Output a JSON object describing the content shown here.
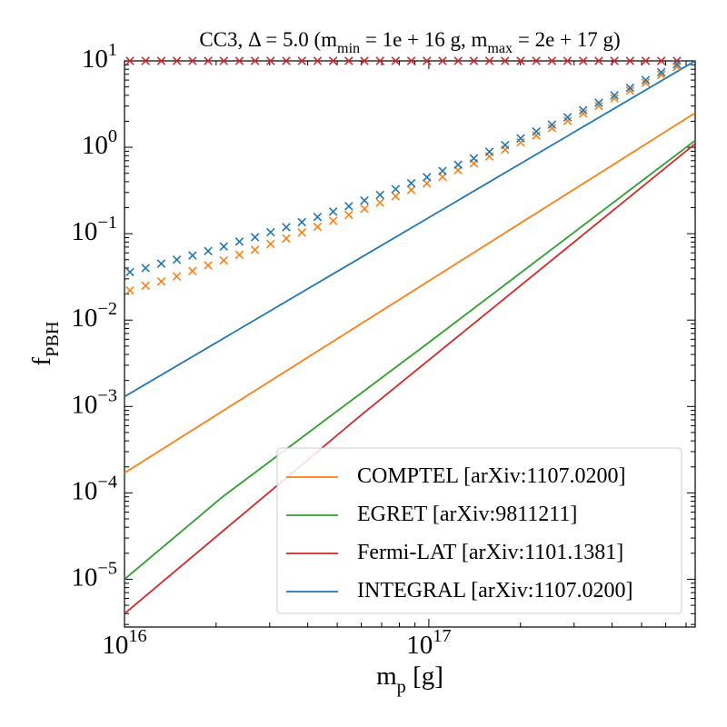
{
  "chart_data": {
    "type": "line",
    "title": "CC3, Δ = 5.0 (m_{min} = 1e + 16 g, m_{max} = 2e + 17 g)",
    "x_label": "m_{p} [g]",
    "y_label": "f_{PBH}",
    "x_log": true,
    "y_log": true,
    "xlim": [
      1e+16,
      7.5e+17
    ],
    "ylim": [
      2.8e-06,
      10
    ],
    "xticks": [
      {
        "value": 1e+16,
        "label": "10^{16}"
      },
      {
        "value": 1e+17,
        "label": "10^{17}"
      }
    ],
    "yticks": [
      {
        "value": 10,
        "label": "10^{1}"
      },
      {
        "value": 1,
        "label": "10^{0}"
      },
      {
        "value": 0.1,
        "label": "10^{−1}"
      },
      {
        "value": 0.01,
        "label": "10^{−2}"
      },
      {
        "value": 0.001,
        "label": "10^{−3}"
      },
      {
        "value": 0.0001,
        "label": "10^{−4}"
      },
      {
        "value": 1e-05,
        "label": "10^{−5}"
      }
    ],
    "legend": "lower right",
    "series": [
      {
        "name": "COMPTEL [arXiv:1107.0200]",
        "color": "#ff7f0e",
        "x": [
          1e+16,
          7.5e+17
        ],
        "values": [
          0.00017,
          2.5
        ]
      },
      {
        "name": "EGRET [arXiv:9811211]",
        "color": "#2ca02c",
        "x": [
          1e+16,
          2.1e+16,
          1e+17,
          7.5e+17
        ],
        "values": [
          1e-05,
          9e-05,
          0.0055,
          1.2
        ]
      },
      {
        "name": "Fermi-LAT [arXiv:1101.1381]",
        "color": "#d62728",
        "x": [
          1e+16,
          6e+16,
          7.5e+17
        ],
        "values": [
          4e-06,
          0.0008,
          1.1
        ]
      },
      {
        "name": "INTEGRAL [arXiv:1107.0200]",
        "color": "#1f77b4",
        "x": [
          1e+16,
          7.5e+17
        ],
        "values": [
          0.0013,
          10
        ]
      }
    ],
    "scatter": {
      "marker": "x",
      "x": [
        1.042e+16,
        1.173e+16,
        1.321e+16,
        1.486e+16,
        1.673e+16,
        1.883e+16,
        2.119e+16,
        2.385e+16,
        2.684e+16,
        3.021e+16,
        3.4e+16,
        3.827e+16,
        4.307e+16,
        4.848e+16,
        5.456e+16,
        6.141e+16,
        6.911e+16,
        7.779e+16,
        8.755e+16,
        9.853e+16,
        1.109e+17,
        1.248e+17,
        1.405e+17,
        1.581e+17,
        1.78e+17,
        2.003e+17,
        2.254e+17,
        2.537e+17,
        2.856e+17,
        3.214e+17,
        3.617e+17,
        4.071e+17,
        4.582e+17,
        5.157e+17,
        5.804e+17,
        6.532e+17
      ],
      "series": [
        {
          "color": "#d62728",
          "values": [
            10,
            10,
            10,
            10,
            10,
            10,
            10,
            10,
            10,
            10,
            10,
            10,
            10,
            10,
            10,
            10,
            10,
            10,
            10,
            10,
            10,
            10,
            10,
            10,
            10,
            10,
            10,
            10,
            10,
            10,
            10,
            10,
            10,
            10,
            10,
            10
          ]
        },
        {
          "color": "#ff7f0e",
          "values": [
            0.022,
            0.025,
            0.028,
            0.032,
            0.037,
            0.043,
            0.049,
            0.057,
            0.065,
            0.076,
            0.088,
            0.103,
            0.12,
            0.141,
            0.165,
            0.194,
            0.229,
            0.271,
            0.321,
            0.382,
            0.455,
            0.544,
            0.652,
            0.782,
            0.94,
            1.14,
            1.37,
            1.67,
            2.02,
            2.47,
            3.01,
            3.69,
            4.53,
            5.58,
            6.89,
            8.51
          ]
        },
        {
          "color": "#1f77b4",
          "values": [
            0.036,
            0.04,
            0.045,
            0.05,
            0.056,
            0.063,
            0.071,
            0.081,
            0.091,
            0.104,
            0.119,
            0.136,
            0.156,
            0.18,
            0.208,
            0.242,
            0.281,
            0.328,
            0.384,
            0.451,
            0.532,
            0.629,
            0.745,
            0.887,
            1.06,
            1.27,
            1.52,
            1.83,
            2.22,
            2.69,
            3.27,
            3.99,
            4.88,
            6.0,
            7.38,
            9.12
          ]
        }
      ]
    }
  }
}
